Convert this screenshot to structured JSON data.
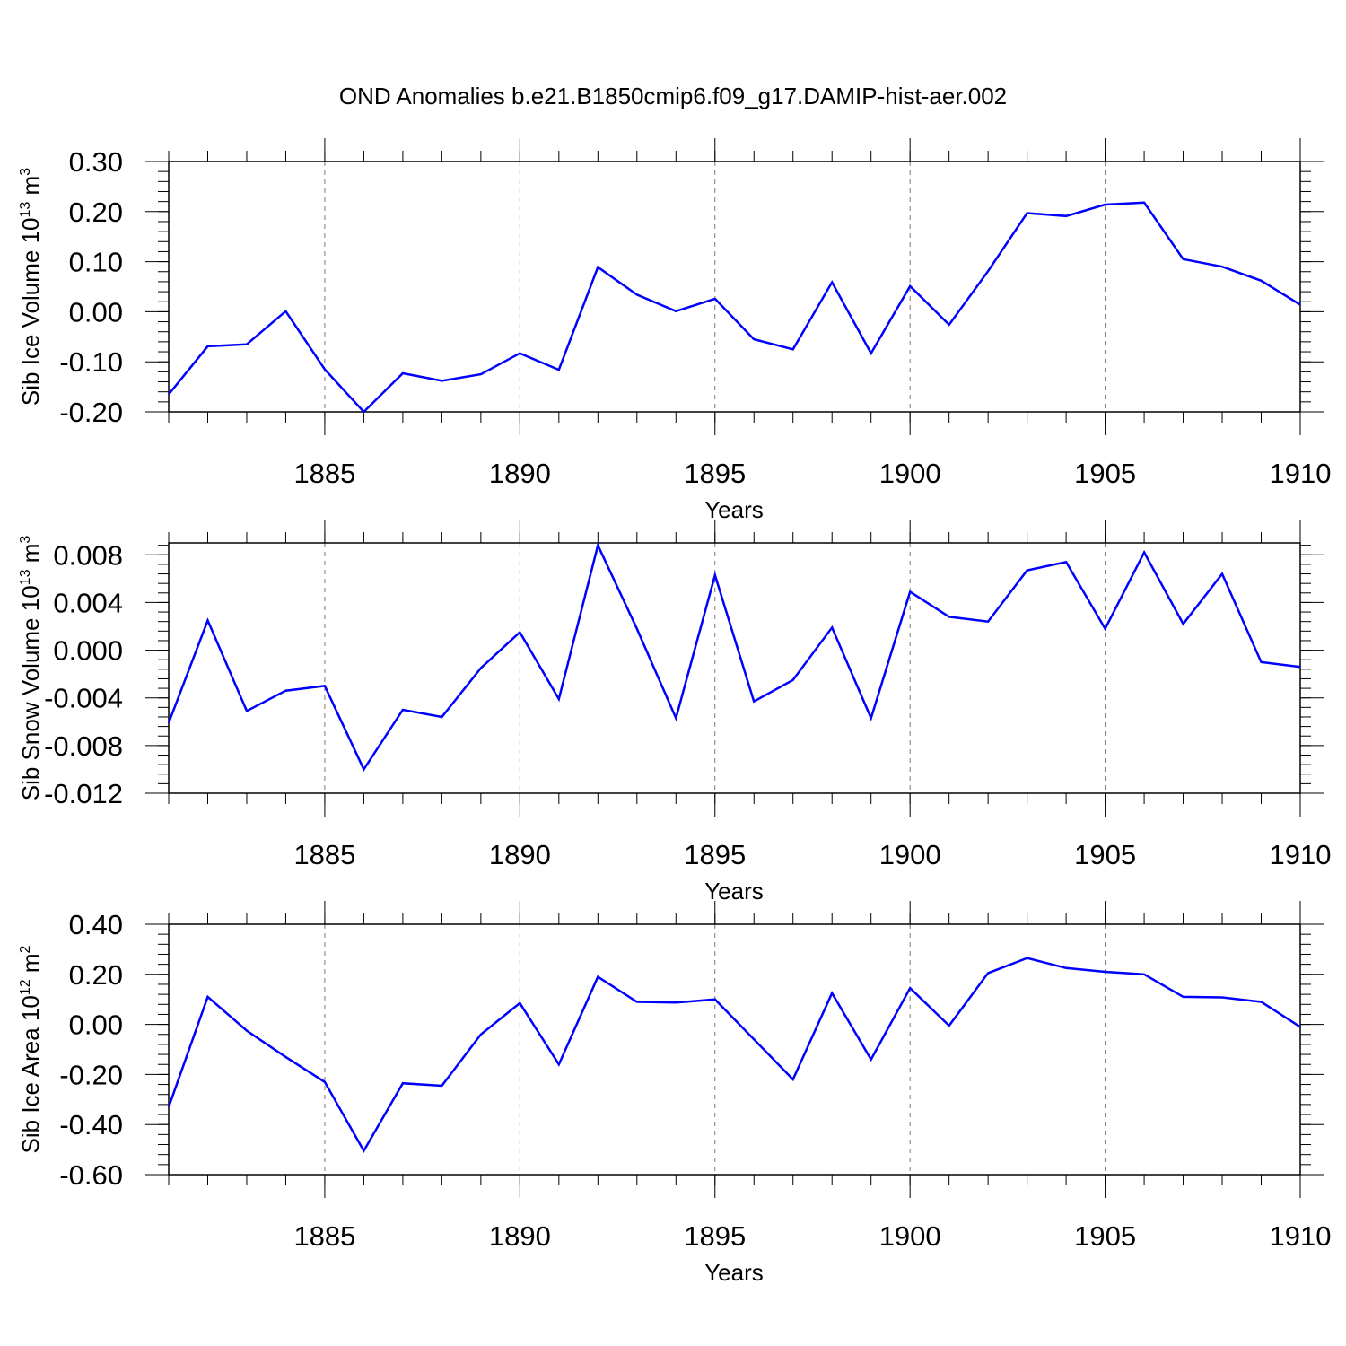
{
  "title": "OND Anomalies b.e21.B1850cmip6.f09_g17.DAMIP-hist-aer.002",
  "line_color": "#0000ff",
  "chart_data": [
    {
      "type": "line",
      "ylabel_main": "Sib Ice Volume 10",
      "ylabel_exp": "13",
      "ylabel_unit": " m",
      "ylabel_unit_exp": "3",
      "xlabel": "Years",
      "xlim": [
        1881,
        1910
      ],
      "ylim": [
        -0.2,
        0.3
      ],
      "yticks": [
        -0.2,
        -0.1,
        0.0,
        0.1,
        0.2,
        0.3
      ],
      "ytick_labels": [
        "-0.20",
        "-0.10",
        "0.00",
        "0.10",
        "0.20",
        "0.30"
      ],
      "xticks": [
        1885,
        1890,
        1895,
        1900,
        1905,
        1910
      ],
      "xtick_labels": [
        "1885",
        "1890",
        "1895",
        "1900",
        "1905",
        "1910"
      ],
      "x": [
        1881,
        1882,
        1883,
        1884,
        1885,
        1886,
        1887,
        1888,
        1889,
        1890,
        1891,
        1892,
        1893,
        1894,
        1895,
        1896,
        1897,
        1898,
        1899,
        1900,
        1901,
        1902,
        1903,
        1904,
        1905,
        1906,
        1907,
        1908,
        1909,
        1910
      ],
      "values": [
        -0.165,
        -0.069,
        -0.065,
        0.001,
        -0.115,
        -0.2,
        -0.123,
        -0.138,
        -0.125,
        -0.083,
        -0.116,
        0.089,
        0.034,
        0.001,
        0.026,
        -0.055,
        -0.075,
        0.059,
        -0.083,
        0.051,
        -0.026,
        0.081,
        0.197,
        0.191,
        0.214,
        0.218,
        0.105,
        0.09,
        0.062,
        0.014
      ]
    },
    {
      "type": "line",
      "ylabel_main": "Sib Snow Volume 10",
      "ylabel_exp": "13",
      "ylabel_unit": " m",
      "ylabel_unit_exp": "3",
      "xlabel": "Years",
      "xlim": [
        1881,
        1910
      ],
      "ylim": [
        -0.012,
        0.009
      ],
      "yticks": [
        -0.012,
        -0.008,
        -0.004,
        0.0,
        0.004,
        0.008
      ],
      "ytick_labels": [
        "-0.012",
        "-0.008",
        "-0.004",
        "0.000",
        "0.004",
        "0.008"
      ],
      "xticks": [
        1885,
        1890,
        1895,
        1900,
        1905,
        1910
      ],
      "xtick_labels": [
        "1885",
        "1890",
        "1895",
        "1900",
        "1905",
        "1910"
      ],
      "x": [
        1881,
        1882,
        1883,
        1884,
        1885,
        1886,
        1887,
        1888,
        1889,
        1890,
        1891,
        1892,
        1893,
        1894,
        1895,
        1896,
        1897,
        1898,
        1899,
        1900,
        1901,
        1902,
        1903,
        1904,
        1905,
        1906,
        1907,
        1908,
        1909,
        1910
      ],
      "values": [
        -0.0061,
        0.0025,
        -0.0051,
        -0.0034,
        -0.003,
        -0.01,
        -0.005,
        -0.0056,
        -0.0015,
        0.0015,
        -0.0041,
        0.0088,
        0.0018,
        -0.0057,
        0.0063,
        -0.0043,
        -0.0025,
        0.0019,
        -0.0057,
        0.0049,
        0.0028,
        0.0024,
        0.0067,
        0.0074,
        0.0018,
        0.0082,
        0.0022,
        0.0064,
        -0.001,
        -0.0014
      ]
    },
    {
      "type": "line",
      "ylabel_main": "Sib Ice Area 10",
      "ylabel_exp": "12",
      "ylabel_unit": " m",
      "ylabel_unit_exp": "2",
      "xlabel": "Years",
      "xlim": [
        1881,
        1910
      ],
      "ylim": [
        -0.6,
        0.4
      ],
      "yticks": [
        -0.6,
        -0.4,
        -0.2,
        0.0,
        0.2,
        0.4
      ],
      "ytick_labels": [
        "-0.60",
        "-0.40",
        "-0.20",
        "0.00",
        "0.20",
        "0.40"
      ],
      "xticks": [
        1885,
        1890,
        1895,
        1900,
        1905,
        1910
      ],
      "xtick_labels": [
        "1885",
        "1890",
        "1895",
        "1900",
        "1905",
        "1910"
      ],
      "x": [
        1881,
        1882,
        1883,
        1884,
        1885,
        1886,
        1887,
        1888,
        1889,
        1890,
        1891,
        1892,
        1893,
        1894,
        1895,
        1896,
        1897,
        1898,
        1899,
        1900,
        1901,
        1902,
        1903,
        1904,
        1905,
        1906,
        1907,
        1908,
        1909,
        1910
      ],
      "values": [
        -0.33,
        0.11,
        -0.025,
        -0.13,
        -0.23,
        -0.505,
        -0.235,
        -0.245,
        -0.04,
        0.085,
        -0.16,
        0.19,
        0.09,
        0.087,
        0.1,
        -0.06,
        -0.22,
        0.125,
        -0.14,
        0.145,
        -0.005,
        0.205,
        0.265,
        0.225,
        0.21,
        0.2,
        0.11,
        0.108,
        0.09,
        -0.01
      ]
    }
  ]
}
